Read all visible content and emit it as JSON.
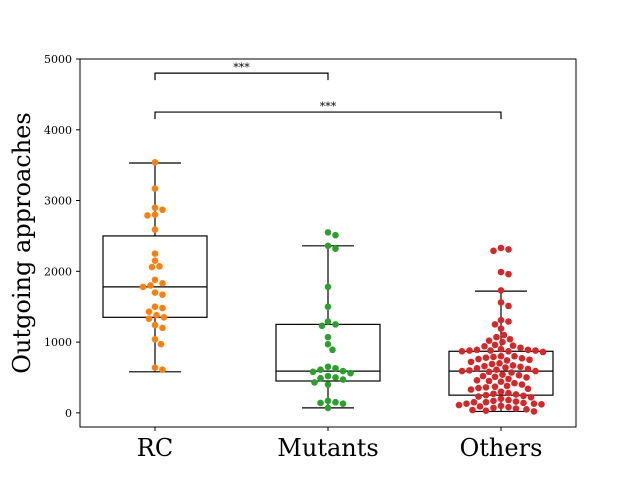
{
  "chart_data": {
    "type": "box+swarm",
    "ylabel": "Outgoing approaches",
    "ylim": [
      -200,
      5000
    ],
    "yticks": [
      0,
      1000,
      2000,
      3000,
      4000,
      5000
    ],
    "categories": [
      "RC",
      "Mutants",
      "Others"
    ],
    "colors": [
      "#ff7f0e",
      "#2ca02c",
      "#d62728"
    ],
    "boxes": [
      {
        "category": "RC",
        "whisker_low": 580,
        "q1": 1350,
        "median": 1780,
        "q3": 2500,
        "whisker_high": 3530
      },
      {
        "category": "Mutants",
        "whisker_low": 70,
        "q1": 450,
        "median": 590,
        "q3": 1250,
        "whisker_high": 2360
      },
      {
        "category": "Others",
        "whisker_low": 20,
        "q1": 250,
        "median": 590,
        "q3": 870,
        "whisker_high": 1720
      }
    ],
    "series": [
      {
        "name": "RC",
        "values": [
          3540,
          3170,
          2900,
          2870,
          2800,
          2790,
          2590,
          2250,
          2150,
          2070,
          2060,
          1880,
          1830,
          1800,
          1780,
          1700,
          1670,
          1500,
          1480,
          1430,
          1380,
          1350,
          1330,
          1240,
          1200,
          1040,
          970,
          640,
          610
        ]
      },
      {
        "name": "Mutants",
        "values": [
          2550,
          2510,
          2360,
          2320,
          1780,
          1500,
          1290,
          1250,
          1230,
          1070,
          970,
          890,
          650,
          630,
          610,
          590,
          580,
          560,
          520,
          500,
          490,
          470,
          430,
          400,
          170,
          150,
          140,
          130,
          70
        ]
      },
      {
        "name": "Others",
        "values": [
          2330,
          2310,
          2290,
          1990,
          1960,
          1730,
          1560,
          1510,
          1310,
          1290,
          1250,
          1190,
          1100,
          1070,
          1040,
          1020,
          1000,
          960,
          950,
          940,
          920,
          900,
          890,
          890,
          880,
          880,
          880,
          870,
          870,
          860,
          800,
          800,
          790,
          780,
          770,
          760,
          750,
          740,
          720,
          700,
          690,
          670,
          660,
          650,
          640,
          630,
          620,
          610,
          600,
          590,
          590,
          580,
          570,
          540,
          530,
          520,
          510,
          500,
          480,
          460,
          450,
          440,
          420,
          400,
          380,
          370,
          360,
          350,
          340,
          330,
          300,
          280,
          270,
          260,
          250,
          240,
          230,
          220,
          200,
          180,
          170,
          160,
          150,
          150,
          140,
          130,
          130,
          120,
          110,
          100,
          90,
          80,
          70,
          60,
          50,
          40,
          30,
          20
        ]
      }
    ],
    "significance": [
      {
        "from": "RC",
        "to": "Mutants",
        "y": 4800,
        "label": "***"
      },
      {
        "from": "RC",
        "to": "Others",
        "y": 4250,
        "label": "***"
      }
    ]
  }
}
